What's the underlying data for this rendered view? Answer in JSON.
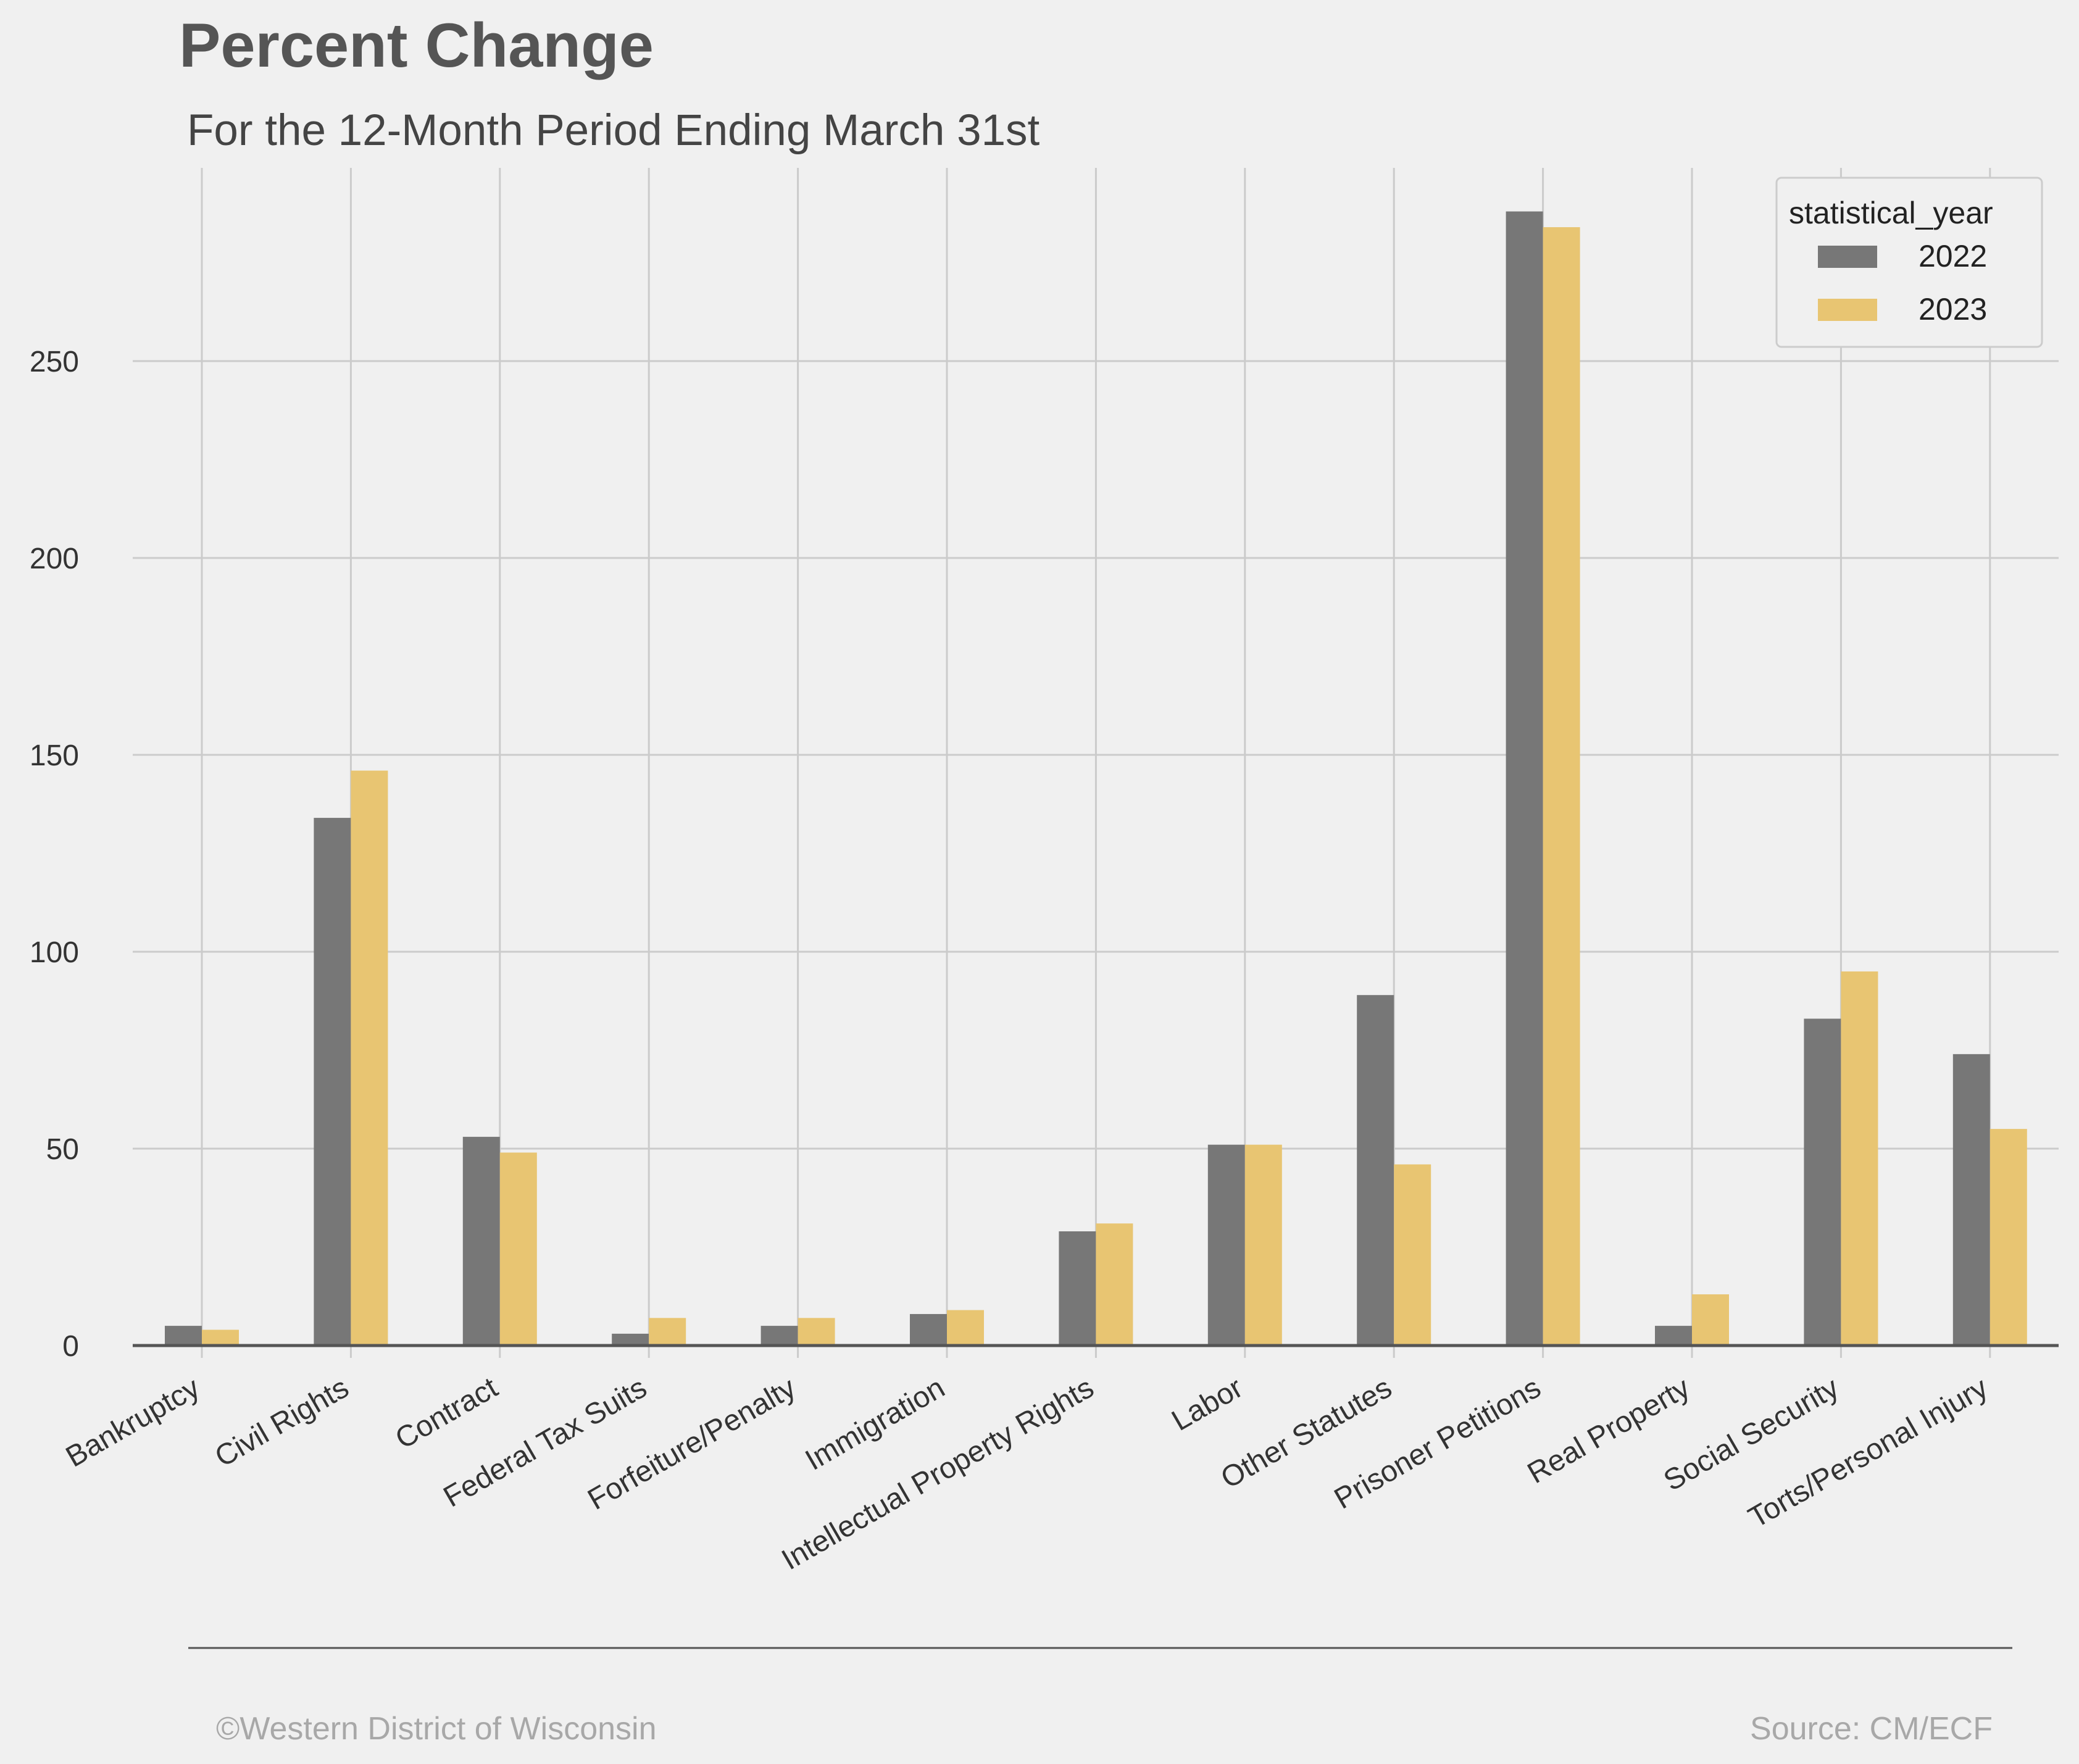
{
  "header": {
    "title": "Percent Change",
    "subtitle": "For the 12-Month Period Ending March 31st"
  },
  "footer": {
    "left": "©Western District of Wisconsin",
    "right": "Source: CM/ECF"
  },
  "chart_data": {
    "type": "bar",
    "title": "Percent Change",
    "subtitle": "For the 12-Month Period Ending March 31st",
    "xlabel": "",
    "ylabel": "",
    "categories": [
      "Bankruptcy",
      "Civil Rights",
      "Contract",
      "Federal Tax Suits",
      "Forfeiture/Penalty",
      "Immigration",
      "Intellectual Property Rights",
      "Labor",
      "Other Statutes",
      "Prisoner Petitions",
      "Real Property",
      "Social Security",
      "Torts/Personal Injury"
    ],
    "series": [
      {
        "name": "2022",
        "color": "#777777",
        "values": [
          5,
          134,
          53,
          3,
          5,
          8,
          29,
          51,
          89,
          288,
          5,
          83,
          74
        ]
      },
      {
        "name": "2023",
        "color": "#e8c572",
        "values": [
          4,
          146,
          49,
          7,
          7,
          9,
          31,
          51,
          46,
          284,
          13,
          95,
          55
        ]
      }
    ],
    "ylim": [
      0,
      300
    ],
    "yticks": [
      "0",
      "50",
      "100",
      "150",
      "200",
      "250"
    ],
    "ytick_values": [
      0,
      50,
      100,
      150,
      200,
      250
    ],
    "grid": true,
    "legend": {
      "title": "statistical_year",
      "placement": "top-right"
    }
  }
}
